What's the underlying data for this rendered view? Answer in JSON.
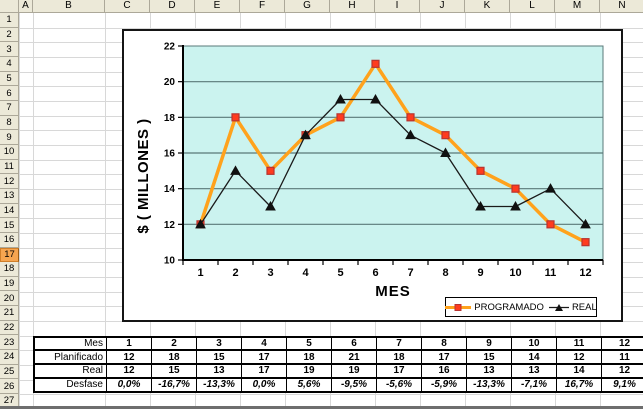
{
  "spreadsheet": {
    "columns": [
      "A",
      "B",
      "C",
      "D",
      "E",
      "F",
      "G",
      "H",
      "I",
      "J",
      "K",
      "L",
      "M",
      "N"
    ],
    "row_numbers": [
      1,
      2,
      3,
      4,
      5,
      6,
      7,
      8,
      9,
      10,
      11,
      12,
      13,
      14,
      15,
      16,
      17,
      18,
      19,
      20,
      21,
      22,
      23,
      24,
      25,
      26,
      27
    ],
    "selected_row": 17,
    "colors": {
      "header_bg": "#ECE9D8",
      "header_border": "#ACA899",
      "selected_header_bg": "#F6A550",
      "sheet_gridline": "#D8D8D8"
    }
  },
  "chart_data": {
    "type": "line",
    "title": "",
    "xlabel": "MES",
    "ylabel": "$ ( MILLONES )",
    "categories": [
      1,
      2,
      3,
      4,
      5,
      6,
      7,
      8,
      9,
      10,
      11,
      12
    ],
    "series": [
      {
        "name": "PROGRAMADO",
        "values": [
          12,
          18,
          15,
          17,
          18,
          21,
          18,
          17,
          15,
          14,
          12,
          11
        ],
        "color": "#FFA21C",
        "marker": "square",
        "marker_fill": "#FF3B1E",
        "marker_stroke": "#B83430",
        "line_width": 3.5
      },
      {
        "name": "REAL",
        "values": [
          12,
          15,
          13,
          17,
          19,
          19,
          17,
          16,
          13,
          13,
          14,
          12
        ],
        "color": "#1A1A1A",
        "marker": "triangle",
        "marker_fill": "#111111",
        "marker_stroke": "#111111",
        "line_width": 1.3
      }
    ],
    "ylim": [
      10,
      22
    ],
    "yticks": [
      10,
      12,
      14,
      16,
      18,
      20,
      22
    ],
    "grid": true,
    "legend_position": "bottom-right",
    "plot_bg": "#CBF3EF",
    "grid_color": "#5A7878"
  },
  "table": {
    "rows": [
      {
        "label": "Mes",
        "values": [
          "1",
          "2",
          "3",
          "4",
          "5",
          "6",
          "7",
          "8",
          "9",
          "10",
          "11",
          "12"
        ],
        "value_style": "bold"
      },
      {
        "label": "Planificado",
        "values": [
          "12",
          "18",
          "15",
          "17",
          "18",
          "21",
          "18",
          "17",
          "15",
          "14",
          "12",
          "11"
        ],
        "value_style": "bold"
      },
      {
        "label": "Real",
        "values": [
          "12",
          "15",
          "13",
          "17",
          "19",
          "19",
          "17",
          "16",
          "13",
          "13",
          "14",
          "12"
        ],
        "value_style": "bold"
      },
      {
        "label": "Desfase",
        "values": [
          "0,0%",
          "-16,7%",
          "-13,3%",
          "0,0%",
          "5,6%",
          "-9,5%",
          "-5,6%",
          "-5,9%",
          "-13,3%",
          "-7,1%",
          "16,7%",
          "9,1%"
        ],
        "value_style": "bold-italic"
      }
    ]
  }
}
